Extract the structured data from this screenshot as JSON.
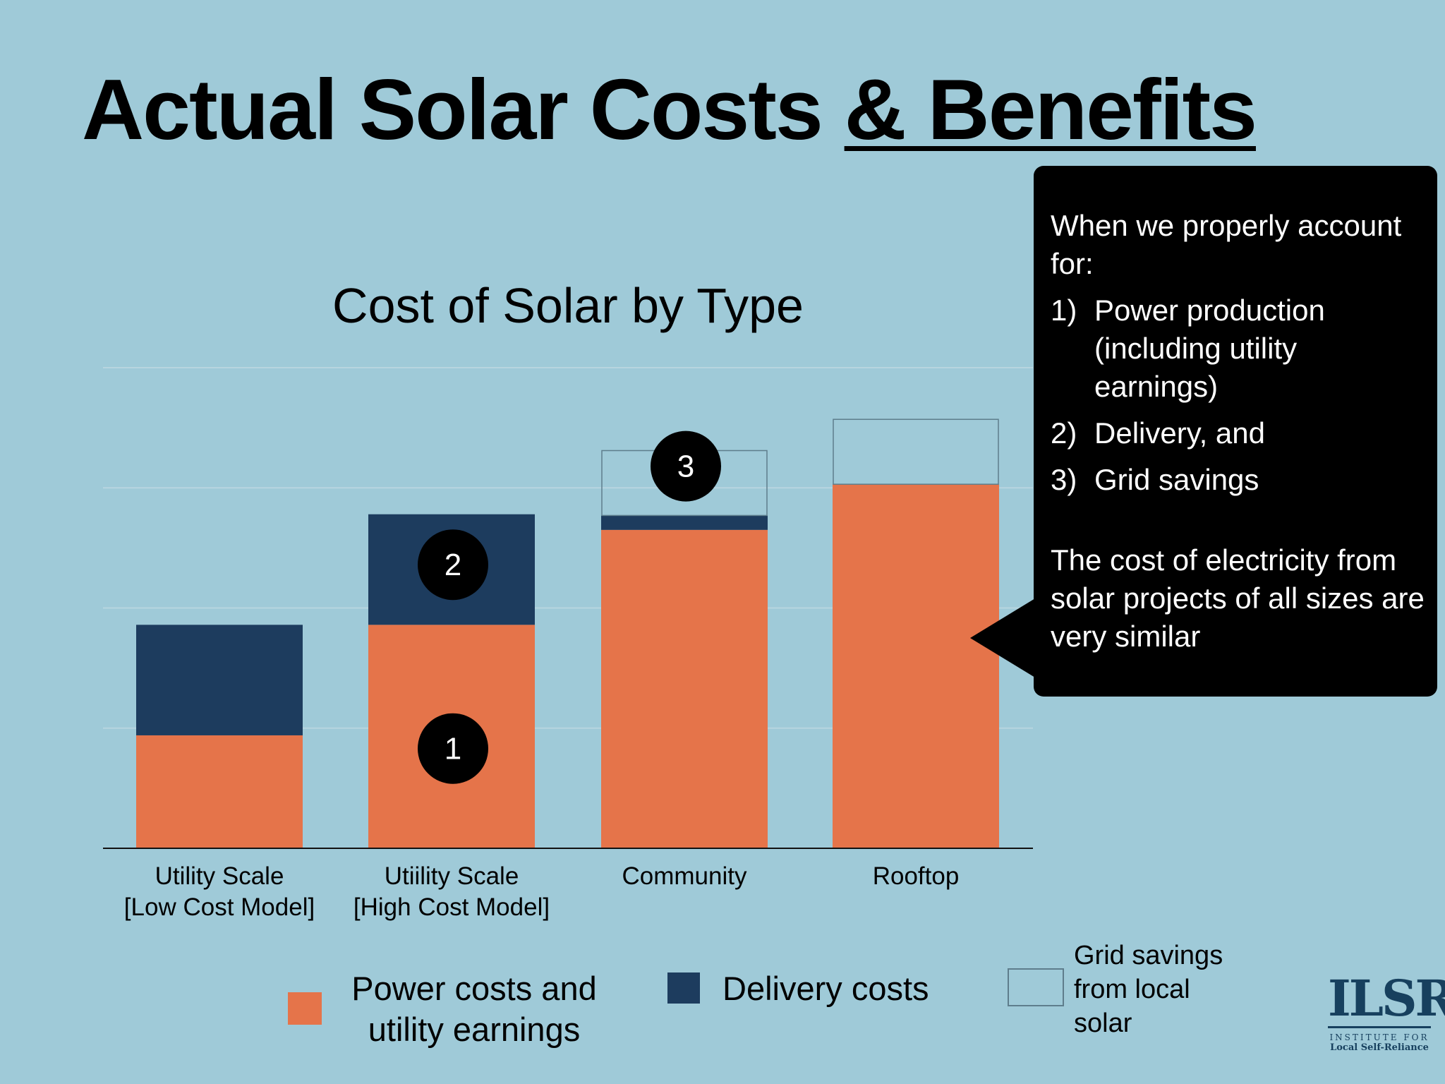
{
  "slide": {
    "title_main": "Actual Solar Costs ",
    "title_emphasis": "& Benefits"
  },
  "chart_data": {
    "type": "bar",
    "stacked": true,
    "title": "Cost of Solar by Type",
    "categories": [
      [
        "Utility Scale",
        "[Low Cost Model]"
      ],
      [
        "Utiility Scale",
        "[High Cost Model]"
      ],
      [
        "Community"
      ],
      [
        "Rooftop"
      ]
    ],
    "series": [
      {
        "name": "Power costs and utility earnings",
        "values": [
          0.94,
          1.86,
          2.65,
          3.03
        ],
        "color": "#e5744a",
        "style": "filled"
      },
      {
        "name": "Delivery costs",
        "values": [
          0.92,
          0.92,
          0.12,
          0
        ],
        "color": "#1d3c5e",
        "style": "filled"
      },
      {
        "name": "Grid savings from local solar",
        "values": [
          0,
          0,
          0.54,
          0.54
        ],
        "color": "#5e7d8c",
        "style": "outline"
      }
    ],
    "ylim": [
      0,
      4
    ],
    "gridlines": [
      1,
      2,
      3,
      4
    ],
    "y_tick_labels": false,
    "grid": true,
    "legend_position": "bottom",
    "annotations": [
      {
        "label": "1",
        "category_index": 1,
        "series_index": 0,
        "value": 0.83
      },
      {
        "label": "2",
        "category_index": 1,
        "series_index": 1,
        "value": 2.36
      },
      {
        "label": "3",
        "category_index": 2,
        "series_index": 2,
        "value": 3.18
      }
    ]
  },
  "callout": {
    "intro": "When we properly account for:",
    "items": [
      {
        "num": "1)",
        "text": "Power production (including utility earnings)"
      },
      {
        "num": "2)",
        "text": "Delivery, and"
      },
      {
        "num": "3)",
        "text": "Grid savings"
      }
    ],
    "conclusion": "The cost of electricity from solar projects of all sizes are very similar"
  },
  "legend": {
    "power_line1": "Power costs and",
    "power_line2": "utility earnings",
    "delivery": "Delivery costs",
    "grid_line1": "Grid savings",
    "grid_line2": "from local",
    "grid_line3": "solar"
  },
  "logo": {
    "mark": "ILSR",
    "line1": "INSTITUTE FOR",
    "line2": "Local Self-Reliance"
  }
}
